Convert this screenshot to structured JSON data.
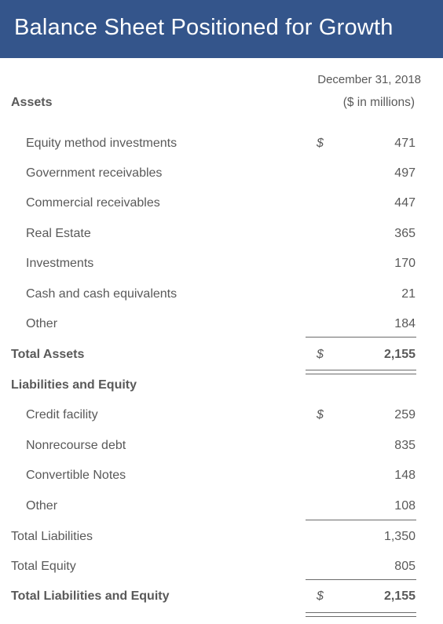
{
  "title": "Balance Sheet Positioned for Growth",
  "header": {
    "date": "December 31, 2018",
    "units": "($ in millions)"
  },
  "assets": {
    "label": "Assets",
    "rows": [
      {
        "label": "Equity method investments",
        "currency": "$",
        "amount": "471"
      },
      {
        "label": "Government receivables",
        "currency": "",
        "amount": "497"
      },
      {
        "label": "Commercial receivables",
        "currency": "",
        "amount": "447"
      },
      {
        "label": "Real Estate",
        "currency": "",
        "amount": "365"
      },
      {
        "label": "Investments",
        "currency": "",
        "amount": "170"
      },
      {
        "label": "Cash and cash equivalents",
        "currency": "",
        "amount": "21"
      },
      {
        "label": "Other",
        "currency": "",
        "amount": "184"
      }
    ],
    "total": {
      "label": "Total Assets",
      "currency": "$",
      "amount": "2,155"
    }
  },
  "liabilities": {
    "label": "Liabilities and Equity",
    "rows": [
      {
        "label": "Credit facility",
        "currency": "$",
        "amount": "259"
      },
      {
        "label": "Nonrecourse debt",
        "currency": "",
        "amount": "835"
      },
      {
        "label": "Convertible Notes",
        "currency": "",
        "amount": "148"
      },
      {
        "label": "Other",
        "currency": "",
        "amount": "108"
      }
    ],
    "total_liabilities": {
      "label": "Total Liabilities",
      "amount": "1,350"
    },
    "total_equity": {
      "label": "Total Equity",
      "amount": "805"
    },
    "total": {
      "label": "Total Liabilities and Equity",
      "currency": "$",
      "amount": "2,155"
    }
  }
}
